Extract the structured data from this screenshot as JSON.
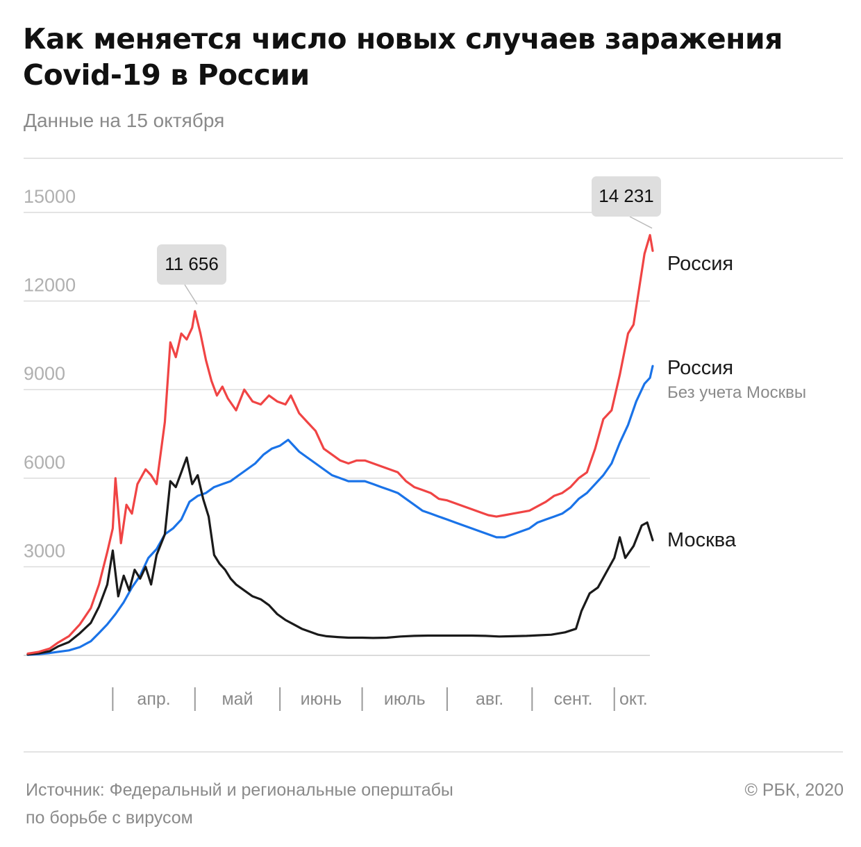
{
  "header": {
    "title_line1": "Как меняется число новых случаев заражения",
    "title_line2": "Covid-19 в России",
    "subtitle": "Данные на 15 октября"
  },
  "footer": {
    "source_line1": "Источник: Федеральный и региональные оперштабы",
    "source_line2": "по борьбе с вирусом",
    "copyright": "© РБК, 2020"
  },
  "colors": {
    "russia": "#f04444",
    "russia_no_moscow": "#1a73e8",
    "moscow": "#1a1a1a",
    "grid": "#dcdcdc",
    "tick_label": "#b0b0b0",
    "callout_bg": "#dedede"
  },
  "chart_data": {
    "type": "line",
    "title": "Как меняется число новых случаев заражения Covid-19 в России",
    "subtitle": "Данные на 15 октября",
    "x_range": [
      "2020-03-01",
      "2020-10-15"
    ],
    "ylim": [
      0,
      15000
    ],
    "y_ticks": [
      0,
      3000,
      6000,
      9000,
      12000,
      15000
    ],
    "y_tick_labels": [
      "3000",
      "6000",
      "9000",
      "12000",
      "15000"
    ],
    "month_labels": [
      "апр.",
      "май",
      "июнь",
      "июль",
      "авг.",
      "сент.",
      "окт."
    ],
    "grid": true,
    "series": [
      {
        "key": "russia",
        "name": "Россия",
        "sublabel": "",
        "points": [
          [
            "2020-03-01",
            60
          ],
          [
            "2020-03-05",
            120
          ],
          [
            "2020-03-09",
            230
          ],
          [
            "2020-03-12",
            430
          ],
          [
            "2020-03-16",
            650
          ],
          [
            "2020-03-20",
            1050
          ],
          [
            "2020-03-24",
            1600
          ],
          [
            "2020-03-27",
            2400
          ],
          [
            "2020-03-30",
            3500
          ],
          [
            "2020-04-01",
            4300
          ],
          [
            "2020-04-02",
            6000
          ],
          [
            "2020-04-04",
            3800
          ],
          [
            "2020-04-06",
            5100
          ],
          [
            "2020-04-08",
            4800
          ],
          [
            "2020-04-10",
            5800
          ],
          [
            "2020-04-13",
            6300
          ],
          [
            "2020-04-15",
            6100
          ],
          [
            "2020-04-17",
            5800
          ],
          [
            "2020-04-20",
            7900
          ],
          [
            "2020-04-22",
            10600
          ],
          [
            "2020-04-24",
            10100
          ],
          [
            "2020-04-26",
            10900
          ],
          [
            "2020-04-28",
            10700
          ],
          [
            "2020-04-30",
            11100
          ],
          [
            "2020-05-01",
            11656
          ],
          [
            "2020-05-03",
            10900
          ],
          [
            "2020-05-05",
            10000
          ],
          [
            "2020-05-07",
            9300
          ],
          [
            "2020-05-09",
            8800
          ],
          [
            "2020-05-11",
            9100
          ],
          [
            "2020-05-13",
            8700
          ],
          [
            "2020-05-16",
            8300
          ],
          [
            "2020-05-19",
            9000
          ],
          [
            "2020-05-22",
            8600
          ],
          [
            "2020-05-25",
            8500
          ],
          [
            "2020-05-28",
            8800
          ],
          [
            "2020-05-31",
            8600
          ],
          [
            "2020-06-03",
            8500
          ],
          [
            "2020-06-05",
            8800
          ],
          [
            "2020-06-08",
            8200
          ],
          [
            "2020-06-11",
            7900
          ],
          [
            "2020-06-14",
            7600
          ],
          [
            "2020-06-17",
            7000
          ],
          [
            "2020-06-20",
            6800
          ],
          [
            "2020-06-23",
            6600
          ],
          [
            "2020-06-26",
            6500
          ],
          [
            "2020-06-29",
            6600
          ],
          [
            "2020-07-02",
            6600
          ],
          [
            "2020-07-05",
            6500
          ],
          [
            "2020-07-08",
            6400
          ],
          [
            "2020-07-11",
            6300
          ],
          [
            "2020-07-14",
            6200
          ],
          [
            "2020-07-17",
            5900
          ],
          [
            "2020-07-20",
            5700
          ],
          [
            "2020-07-23",
            5600
          ],
          [
            "2020-07-26",
            5500
          ],
          [
            "2020-07-29",
            5300
          ],
          [
            "2020-08-01",
            5250
          ],
          [
            "2020-08-04",
            5150
          ],
          [
            "2020-08-07",
            5050
          ],
          [
            "2020-08-10",
            4950
          ],
          [
            "2020-08-13",
            4850
          ],
          [
            "2020-08-16",
            4750
          ],
          [
            "2020-08-19",
            4700
          ],
          [
            "2020-08-22",
            4750
          ],
          [
            "2020-08-25",
            4800
          ],
          [
            "2020-08-28",
            4850
          ],
          [
            "2020-08-31",
            4900
          ],
          [
            "2020-09-03",
            5050
          ],
          [
            "2020-09-06",
            5200
          ],
          [
            "2020-09-09",
            5400
          ],
          [
            "2020-09-12",
            5500
          ],
          [
            "2020-09-15",
            5700
          ],
          [
            "2020-09-18",
            6000
          ],
          [
            "2020-09-21",
            6200
          ],
          [
            "2020-09-24",
            7000
          ],
          [
            "2020-09-27",
            8000
          ],
          [
            "2020-09-30",
            8300
          ],
          [
            "2020-10-03",
            9500
          ],
          [
            "2020-10-06",
            10900
          ],
          [
            "2020-10-08",
            11200
          ],
          [
            "2020-10-10",
            12400
          ],
          [
            "2020-10-12",
            13600
          ],
          [
            "2020-10-14",
            14231
          ],
          [
            "2020-10-15",
            13700
          ]
        ]
      },
      {
        "key": "russia_no_moscow",
        "name": "Россия",
        "sublabel": "Без учета Москвы",
        "points": [
          [
            "2020-03-01",
            20
          ],
          [
            "2020-03-05",
            40
          ],
          [
            "2020-03-09",
            80
          ],
          [
            "2020-03-12",
            120
          ],
          [
            "2020-03-16",
            170
          ],
          [
            "2020-03-20",
            280
          ],
          [
            "2020-03-24",
            480
          ],
          [
            "2020-03-27",
            760
          ],
          [
            "2020-03-30",
            1050
          ],
          [
            "2020-04-02",
            1400
          ],
          [
            "2020-04-05",
            1800
          ],
          [
            "2020-04-08",
            2300
          ],
          [
            "2020-04-11",
            2700
          ],
          [
            "2020-04-14",
            3300
          ],
          [
            "2020-04-17",
            3600
          ],
          [
            "2020-04-20",
            4100
          ],
          [
            "2020-04-23",
            4300
          ],
          [
            "2020-04-26",
            4600
          ],
          [
            "2020-04-29",
            5200
          ],
          [
            "2020-05-02",
            5400
          ],
          [
            "2020-05-05",
            5500
          ],
          [
            "2020-05-08",
            5700
          ],
          [
            "2020-05-11",
            5800
          ],
          [
            "2020-05-14",
            5900
          ],
          [
            "2020-05-17",
            6100
          ],
          [
            "2020-05-20",
            6300
          ],
          [
            "2020-05-23",
            6500
          ],
          [
            "2020-05-26",
            6800
          ],
          [
            "2020-05-29",
            7000
          ],
          [
            "2020-06-01",
            7100
          ],
          [
            "2020-06-04",
            7300
          ],
          [
            "2020-06-06",
            7100
          ],
          [
            "2020-06-08",
            6900
          ],
          [
            "2020-06-11",
            6700
          ],
          [
            "2020-06-14",
            6500
          ],
          [
            "2020-06-17",
            6300
          ],
          [
            "2020-06-20",
            6100
          ],
          [
            "2020-06-23",
            6000
          ],
          [
            "2020-06-26",
            5900
          ],
          [
            "2020-06-29",
            5900
          ],
          [
            "2020-07-02",
            5900
          ],
          [
            "2020-07-05",
            5800
          ],
          [
            "2020-07-08",
            5700
          ],
          [
            "2020-07-11",
            5600
          ],
          [
            "2020-07-14",
            5500
          ],
          [
            "2020-07-17",
            5300
          ],
          [
            "2020-07-20",
            5100
          ],
          [
            "2020-07-23",
            4900
          ],
          [
            "2020-07-26",
            4800
          ],
          [
            "2020-07-29",
            4700
          ],
          [
            "2020-08-01",
            4600
          ],
          [
            "2020-08-04",
            4500
          ],
          [
            "2020-08-07",
            4400
          ],
          [
            "2020-08-10",
            4300
          ],
          [
            "2020-08-13",
            4200
          ],
          [
            "2020-08-16",
            4100
          ],
          [
            "2020-08-19",
            4000
          ],
          [
            "2020-08-22",
            4000
          ],
          [
            "2020-08-25",
            4100
          ],
          [
            "2020-08-28",
            4200
          ],
          [
            "2020-08-31",
            4300
          ],
          [
            "2020-09-03",
            4500
          ],
          [
            "2020-09-06",
            4600
          ],
          [
            "2020-09-09",
            4700
          ],
          [
            "2020-09-12",
            4800
          ],
          [
            "2020-09-15",
            5000
          ],
          [
            "2020-09-18",
            5300
          ],
          [
            "2020-09-21",
            5500
          ],
          [
            "2020-09-24",
            5800
          ],
          [
            "2020-09-27",
            6100
          ],
          [
            "2020-09-30",
            6500
          ],
          [
            "2020-10-03",
            7200
          ],
          [
            "2020-10-06",
            7800
          ],
          [
            "2020-10-09",
            8600
          ],
          [
            "2020-10-12",
            9200
          ],
          [
            "2020-10-14",
            9400
          ],
          [
            "2020-10-15",
            9800
          ]
        ]
      },
      {
        "key": "moscow",
        "name": "Москва",
        "sublabel": "",
        "points": [
          [
            "2020-03-01",
            30
          ],
          [
            "2020-03-05",
            70
          ],
          [
            "2020-03-09",
            140
          ],
          [
            "2020-03-12",
            300
          ],
          [
            "2020-03-16",
            450
          ],
          [
            "2020-03-20",
            750
          ],
          [
            "2020-03-24",
            1100
          ],
          [
            "2020-03-27",
            1650
          ],
          [
            "2020-03-30",
            2400
          ],
          [
            "2020-04-01",
            3550
          ],
          [
            "2020-04-03",
            2000
          ],
          [
            "2020-04-05",
            2700
          ],
          [
            "2020-04-07",
            2200
          ],
          [
            "2020-04-09",
            2900
          ],
          [
            "2020-04-11",
            2600
          ],
          [
            "2020-04-13",
            3000
          ],
          [
            "2020-04-15",
            2400
          ],
          [
            "2020-04-17",
            3400
          ],
          [
            "2020-04-20",
            4100
          ],
          [
            "2020-04-22",
            5900
          ],
          [
            "2020-04-24",
            5700
          ],
          [
            "2020-04-26",
            6200
          ],
          [
            "2020-04-28",
            6700
          ],
          [
            "2020-04-30",
            5800
          ],
          [
            "2020-05-02",
            6100
          ],
          [
            "2020-05-04",
            5300
          ],
          [
            "2020-05-06",
            4700
          ],
          [
            "2020-05-08",
            3400
          ],
          [
            "2020-05-10",
            3100
          ],
          [
            "2020-05-12",
            2900
          ],
          [
            "2020-05-14",
            2600
          ],
          [
            "2020-05-16",
            2400
          ],
          [
            "2020-05-19",
            2200
          ],
          [
            "2020-05-22",
            2000
          ],
          [
            "2020-05-25",
            1900
          ],
          [
            "2020-05-28",
            1700
          ],
          [
            "2020-05-31",
            1400
          ],
          [
            "2020-06-03",
            1200
          ],
          [
            "2020-06-06",
            1050
          ],
          [
            "2020-06-09",
            900
          ],
          [
            "2020-06-12",
            800
          ],
          [
            "2020-06-15",
            700
          ],
          [
            "2020-06-18",
            650
          ],
          [
            "2020-06-22",
            620
          ],
          [
            "2020-06-26",
            600
          ],
          [
            "2020-07-01",
            600
          ],
          [
            "2020-07-05",
            590
          ],
          [
            "2020-07-10",
            600
          ],
          [
            "2020-07-15",
            640
          ],
          [
            "2020-07-20",
            660
          ],
          [
            "2020-07-25",
            670
          ],
          [
            "2020-08-01",
            670
          ],
          [
            "2020-08-05",
            670
          ],
          [
            "2020-08-10",
            670
          ],
          [
            "2020-08-15",
            660
          ],
          [
            "2020-08-20",
            640
          ],
          [
            "2020-08-25",
            650
          ],
          [
            "2020-08-30",
            660
          ],
          [
            "2020-09-03",
            680
          ],
          [
            "2020-09-08",
            700
          ],
          [
            "2020-09-13",
            780
          ],
          [
            "2020-09-17",
            900
          ],
          [
            "2020-09-19",
            1500
          ],
          [
            "2020-09-22",
            2100
          ],
          [
            "2020-09-25",
            2300
          ],
          [
            "2020-09-28",
            2800
          ],
          [
            "2020-10-01",
            3300
          ],
          [
            "2020-10-03",
            4000
          ],
          [
            "2020-10-05",
            3300
          ],
          [
            "2020-10-08",
            3700
          ],
          [
            "2020-10-11",
            4400
          ],
          [
            "2020-10-13",
            4500
          ],
          [
            "2020-10-15",
            3900
          ]
        ]
      }
    ],
    "annotations": [
      {
        "series": "russia",
        "x": "2020-05-01",
        "y": 11656,
        "label": "11 656"
      },
      {
        "series": "russia",
        "x": "2020-10-14",
        "y": 14231,
        "label": "14 231"
      }
    ]
  }
}
